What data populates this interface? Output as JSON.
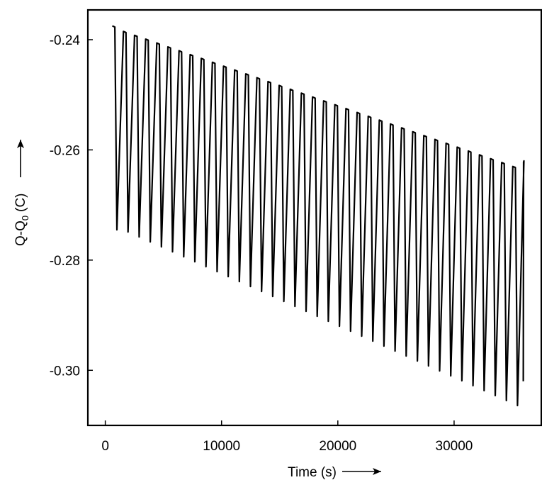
{
  "chart_data": {
    "type": "line",
    "xlabel": "Time (s)",
    "ylabel_main": "Q-Q",
    "ylabel_subscript": "0",
    "ylabel_unit": "(C)",
    "xlim": [
      -1500,
      37500
    ],
    "ylim": [
      -0.31,
      -0.2346
    ],
    "xticks": [
      0,
      10000,
      20000,
      30000
    ],
    "xtick_labels": [
      "0",
      "10000",
      "20000",
      "30000"
    ],
    "yticks": [
      -0.24,
      -0.26,
      -0.28,
      -0.3
    ],
    "ytick_labels": [
      "-0.24",
      "-0.26",
      "-0.28",
      "-0.30"
    ],
    "grid": false,
    "line_color": "#000000",
    "series": [
      {
        "peaks": {
          "x": [
            600,
            1557,
            2514,
            3471,
            4428,
            5385,
            6342,
            7299,
            8256,
            9213,
            10170,
            11127,
            12084,
            13041,
            13998,
            14955,
            15912,
            16869,
            17826,
            18783,
            19740,
            20697,
            21654,
            22611,
            23568,
            24525,
            25482,
            26439,
            27396,
            28353,
            29310,
            30267,
            31224,
            32181,
            33138,
            34095,
            35052,
            36009
          ],
          "y": [
            -0.2375,
            -0.2385,
            -0.2392,
            -0.2399,
            -0.2406,
            -0.2413,
            -0.242,
            -0.2427,
            -0.2434,
            -0.2441,
            -0.2448,
            -0.2455,
            -0.2462,
            -0.2469,
            -0.2476,
            -0.2483,
            -0.249,
            -0.2497,
            -0.2504,
            -0.2511,
            -0.2518,
            -0.2525,
            -0.2532,
            -0.2539,
            -0.2546,
            -0.2553,
            -0.256,
            -0.2567,
            -0.2574,
            -0.2581,
            -0.2588,
            -0.2595,
            -0.2602,
            -0.2609,
            -0.2616,
            -0.2623,
            -0.263,
            -0.262
          ]
        },
        "troughs": {
          "x": [
            1000,
            1957,
            2914,
            3871,
            4828,
            5785,
            6742,
            7699,
            8656,
            9613,
            10570,
            11527,
            12484,
            13441,
            14398,
            15355,
            16312,
            17269,
            18226,
            19183,
            20140,
            21097,
            22054,
            23011,
            23968,
            24925,
            25882,
            26839,
            27796,
            28753,
            29710,
            30667,
            31624,
            32581,
            33538,
            34495,
            35452,
            35950
          ],
          "y": [
            -0.2745,
            -0.2749,
            -0.2758,
            -0.2767,
            -0.2776,
            -0.2785,
            -0.2794,
            -0.2803,
            -0.2812,
            -0.2821,
            -0.283,
            -0.2839,
            -0.2848,
            -0.2857,
            -0.2866,
            -0.2875,
            -0.2884,
            -0.2893,
            -0.2902,
            -0.2911,
            -0.292,
            -0.2929,
            -0.2938,
            -0.2947,
            -0.2956,
            -0.2965,
            -0.2974,
            -0.2983,
            -0.2992,
            -0.3001,
            -0.301,
            -0.3019,
            -0.3028,
            -0.3037,
            -0.3046,
            -0.3055,
            -0.3064,
            -0.302
          ]
        }
      }
    ]
  }
}
